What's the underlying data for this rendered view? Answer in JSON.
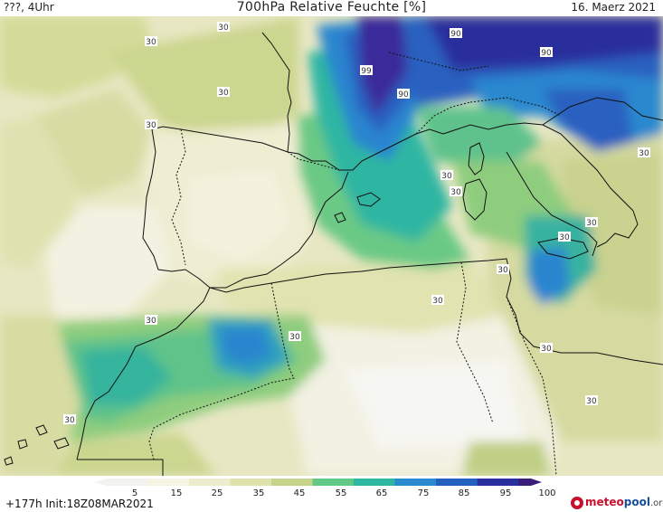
{
  "header": {
    "location": "???, 4Uhr",
    "title": "700hPa Relative Feuchte [%]",
    "date": "16. Maerz 2021"
  },
  "map": {
    "contour_labels": [
      "30",
      "30",
      "30",
      "30",
      "30",
      "30",
      "30",
      "30",
      "30",
      "30",
      "30",
      "30",
      "30",
      "30",
      "30",
      "30",
      "90",
      "90",
      "90",
      "99"
    ]
  },
  "legend": {
    "labels": [
      "5",
      "15",
      "25",
      "35",
      "45",
      "55",
      "65",
      "75",
      "85",
      "95",
      "100"
    ],
    "colors": [
      "#f2f2f0",
      "#f6f4e4",
      "#eeeccd",
      "#dfe2a9",
      "#c6d38a",
      "#62c886",
      "#2eb7a0",
      "#2a8ad0",
      "#2460c0",
      "#2a2fa0",
      "#3a1d78"
    ]
  },
  "footer": {
    "init": "+177h  Init:18Z08MAR2021"
  },
  "logo": {
    "part1": "meteo",
    "part2": "pool",
    "part3": ".org"
  }
}
